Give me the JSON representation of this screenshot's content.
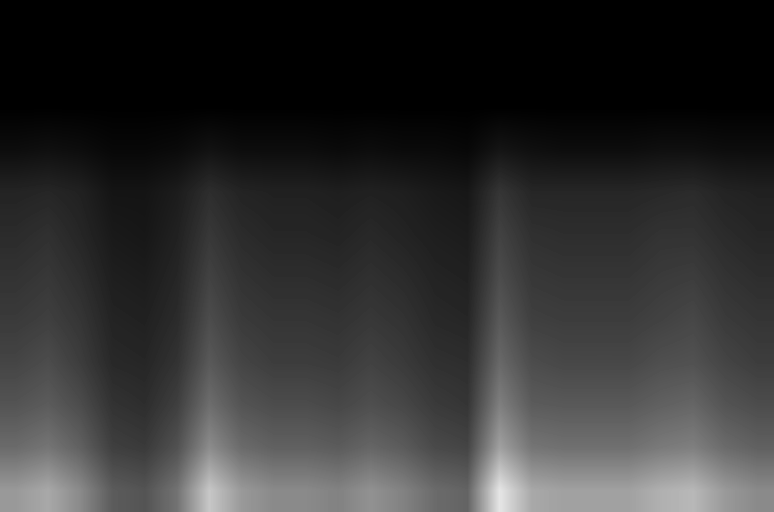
{
  "chart_data": {
    "type": "heatmap",
    "color": "gray",
    "tick_labels": false,
    "grid": false,
    "zlim": [
      0,
      100
    ],
    "cells": [
      [
        0,
        0,
        0,
        0,
        0,
        0,
        0,
        0,
        0,
        0,
        0,
        0,
        0,
        0,
        0,
        0,
        0,
        0,
        0,
        0,
        0,
        0,
        0,
        0
      ],
      [
        0,
        0,
        0,
        0,
        0,
        0,
        0,
        0,
        0,
        0,
        0,
        0,
        0,
        0,
        0,
        0,
        0,
        0,
        0,
        0,
        0,
        0,
        0,
        0
      ],
      [
        0,
        0,
        0,
        0,
        0,
        0,
        0,
        0,
        0,
        0,
        0,
        0,
        0,
        0,
        0,
        0,
        0,
        0,
        0,
        0,
        0,
        0,
        0,
        0
      ],
      [
        5,
        6,
        5,
        3,
        3,
        4,
        7,
        5,
        5,
        5,
        4,
        5,
        4,
        4,
        3,
        8,
        6,
        5,
        5,
        5,
        6,
        6,
        5,
        5
      ],
      [
        14,
        15,
        13,
        8,
        8,
        11,
        18,
        14,
        13,
        13,
        12,
        13,
        12,
        10,
        9,
        21,
        15,
        15,
        15,
        15,
        16,
        17,
        14,
        13
      ],
      [
        17,
        19,
        15,
        10,
        9,
        13,
        22,
        17,
        15,
        15,
        14,
        16,
        14,
        12,
        11,
        26,
        19,
        18,
        18,
        18,
        20,
        20,
        17,
        15
      ],
      [
        20,
        22,
        18,
        12,
        11,
        15,
        26,
        20,
        18,
        18,
        17,
        19,
        17,
        14,
        13,
        30,
        22,
        21,
        21,
        21,
        23,
        24,
        20,
        18
      ],
      [
        23,
        25,
        21,
        14,
        13,
        17,
        30,
        23,
        21,
        21,
        20,
        22,
        20,
        16,
        15,
        35,
        25,
        24,
        24,
        24,
        26,
        28,
        23,
        21
      ],
      [
        27,
        30,
        24,
        16,
        15,
        20,
        35,
        27,
        24,
        24,
        23,
        26,
        23,
        19,
        18,
        41,
        30,
        28,
        28,
        28,
        31,
        32,
        27,
        24
      ],
      [
        33,
        36,
        30,
        20,
        18,
        25,
        43,
        33,
        30,
        30,
        28,
        31,
        28,
        23,
        21,
        50,
        36,
        35,
        35,
        35,
        38,
        40,
        33,
        30
      ],
      [
        42,
        46,
        38,
        25,
        23,
        32,
        55,
        42,
        38,
        38,
        36,
        40,
        36,
        29,
        27,
        63,
        46,
        44,
        44,
        44,
        48,
        50,
        42,
        38
      ],
      [
        60,
        66,
        54,
        36,
        33,
        45,
        78,
        60,
        54,
        54,
        51,
        57,
        51,
        42,
        39,
        90,
        66,
        63,
        63,
        63,
        69,
        72,
        60,
        54
      ]
    ]
  }
}
